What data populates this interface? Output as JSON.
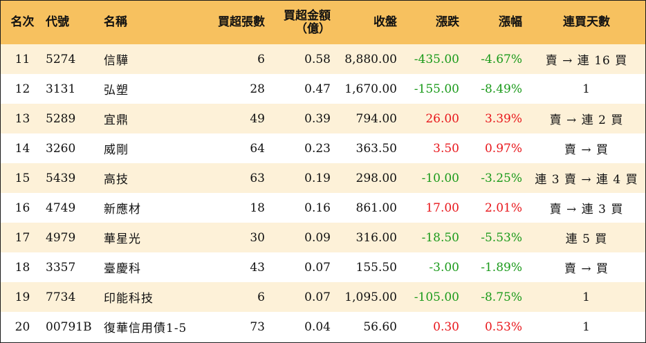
{
  "colors": {
    "header_bg": "#f7c15f",
    "row_alt_bg": "#fdf1d8",
    "up": "#e8161b",
    "down": "#1a9a1a"
  },
  "headers": {
    "rank": "名次",
    "code": "代號",
    "name": "名稱",
    "net_buy_lots": "買超張數",
    "net_buy_amount_line1": "買超金額",
    "net_buy_amount_line2": "（億）",
    "close": "收盤",
    "change": "漲跌",
    "change_pct": "漲幅",
    "consecutive_days": "連買天數"
  },
  "rows": [
    {
      "rank": "11",
      "code": "5274",
      "name": "信驊",
      "lots": "6",
      "amount": "0.58",
      "close": "8,880.00",
      "change": "-435.00",
      "pct": "-4.67%",
      "days": "賣 → 連 16 買",
      "dir": "down"
    },
    {
      "rank": "12",
      "code": "3131",
      "name": "弘塑",
      "lots": "28",
      "amount": "0.47",
      "close": "1,670.00",
      "change": "-155.00",
      "pct": "-8.49%",
      "days": "1",
      "dir": "down"
    },
    {
      "rank": "13",
      "code": "5289",
      "name": "宜鼎",
      "lots": "49",
      "amount": "0.39",
      "close": "794.00",
      "change": "26.00",
      "pct": "3.39%",
      "days": "賣 → 連 2 買",
      "dir": "up"
    },
    {
      "rank": "14",
      "code": "3260",
      "name": "威剛",
      "lots": "64",
      "amount": "0.23",
      "close": "363.50",
      "change": "3.50",
      "pct": "0.97%",
      "days": "賣 → 買",
      "dir": "up"
    },
    {
      "rank": "15",
      "code": "5439",
      "name": "高技",
      "lots": "63",
      "amount": "0.19",
      "close": "298.00",
      "change": "-10.00",
      "pct": "-3.25%",
      "days": "連 3 賣 → 連 4 買",
      "dir": "down"
    },
    {
      "rank": "16",
      "code": "4749",
      "name": "新應材",
      "lots": "18",
      "amount": "0.16",
      "close": "861.00",
      "change": "17.00",
      "pct": "2.01%",
      "days": "賣 → 連 3 買",
      "dir": "up"
    },
    {
      "rank": "17",
      "code": "4979",
      "name": "華星光",
      "lots": "30",
      "amount": "0.09",
      "close": "316.00",
      "change": "-18.50",
      "pct": "-5.53%",
      "days": "連 5 買",
      "dir": "down"
    },
    {
      "rank": "18",
      "code": "3357",
      "name": "臺慶科",
      "lots": "43",
      "amount": "0.07",
      "close": "155.50",
      "change": "-3.00",
      "pct": "-1.89%",
      "days": "賣 → 買",
      "dir": "down"
    },
    {
      "rank": "19",
      "code": "7734",
      "name": "印能科技",
      "lots": "6",
      "amount": "0.07",
      "close": "1,095.00",
      "change": "-105.00",
      "pct": "-8.75%",
      "days": "1",
      "dir": "down"
    },
    {
      "rank": "20",
      "code": "00791B",
      "name": "復華信用債1-5",
      "lots": "73",
      "amount": "0.04",
      "close": "56.60",
      "change": "0.30",
      "pct": "0.53%",
      "days": "1",
      "dir": "up"
    }
  ]
}
